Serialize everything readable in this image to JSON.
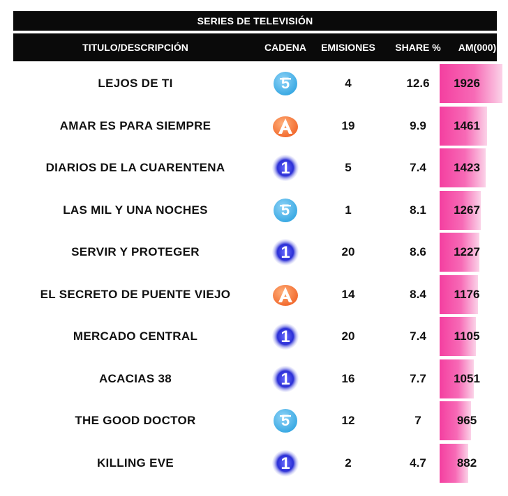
{
  "table": {
    "title": "SERIES DE TELEVISIÓN",
    "headers": {
      "title": "TITULO/DESCRIPCIÓN",
      "channel": "CADENA",
      "emissions": "EMISIONES",
      "share": "SHARE %",
      "audience": "AM(000)"
    }
  },
  "colors": {
    "header_bg": "#0a0a0a",
    "bar": "#f43fa0",
    "telecinco": "#3aa9e3",
    "antena3": "#f26a2e",
    "la1": "#2b2fd6"
  },
  "chart_data": {
    "type": "table",
    "columns": [
      "TITULO/DESCRIPCIÓN",
      "CADENA",
      "EMISIONES",
      "SHARE %",
      "AM(000)"
    ],
    "rows": [
      {
        "title": "LEJOS DE TI",
        "channel": "telecinco-logo",
        "emissions": "4",
        "share": "12.6",
        "audience": "1926",
        "audience_value": 1926
      },
      {
        "title": "AMAR ES PARA SIEMPRE",
        "channel": "antena3-logo",
        "emissions": "19",
        "share": "9.9",
        "audience": "1461",
        "audience_value": 1461
      },
      {
        "title": "DIARIOS DE LA CUARENTENA",
        "channel": "la1-logo",
        "emissions": "5",
        "share": "7.4",
        "audience": "1423",
        "audience_value": 1423
      },
      {
        "title": "LAS MIL Y UNA NOCHES",
        "channel": "telecinco-logo",
        "emissions": "1",
        "share": "8.1",
        "audience": "1267",
        "audience_value": 1267
      },
      {
        "title": "SERVIR Y PROTEGER",
        "channel": "la1-logo",
        "emissions": "20",
        "share": "8.6",
        "audience": "1227",
        "audience_value": 1227
      },
      {
        "title": "EL SECRETO DE PUENTE VIEJO",
        "channel": "antena3-logo",
        "emissions": "14",
        "share": "8.4",
        "audience": "1176",
        "audience_value": 1176
      },
      {
        "title": "MERCADO CENTRAL",
        "channel": "la1-logo",
        "emissions": "20",
        "share": "7.4",
        "audience": "1105",
        "audience_value": 1105
      },
      {
        "title": "ACACIAS 38",
        "channel": "la1-logo",
        "emissions": "16",
        "share": "7.7",
        "audience": "1051",
        "audience_value": 1051
      },
      {
        "title": "THE GOOD DOCTOR",
        "channel": "telecinco-logo",
        "emissions": "12",
        "share": "7",
        "audience": "965",
        "audience_value": 965
      },
      {
        "title": "KILLING EVE",
        "channel": "la1-logo",
        "emissions": "2",
        "share": "4.7",
        "audience": "882",
        "audience_value": 882
      }
    ]
  }
}
